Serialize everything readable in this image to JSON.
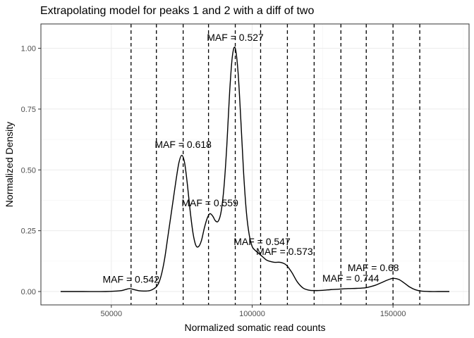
{
  "chart_data": {
    "type": "line",
    "title": "Extrapolating model for peaks 1 and 2 with a diff of two",
    "xlabel": "Normalized somatic read counts",
    "ylabel": "Normalized Density",
    "xlim": [
      25000,
      177000
    ],
    "ylim": [
      -0.055,
      1.1
    ],
    "x_ticks": [
      50000,
      100000,
      150000
    ],
    "x_tick_labels": [
      "50000",
      "100000",
      "150000"
    ],
    "y_ticks": [
      0,
      0.25,
      0.5,
      0.75,
      1.0
    ],
    "y_tick_labels": [
      "0.00",
      "0.25",
      "0.50",
      "0.75",
      "1.00"
    ],
    "grid": true,
    "series": [
      {
        "x": [
          32000,
          40000,
          48000,
          53000,
          55000,
          56500,
          58000,
          60000,
          62000,
          64000,
          66000,
          67000,
          68000,
          69000,
          70000,
          71000,
          72000,
          73000,
          74000,
          75000,
          76000,
          77000,
          78000,
          79000,
          80000,
          81000,
          82000,
          83000,
          84000,
          85000,
          86000,
          87000,
          88000,
          89000,
          90000,
          91000,
          92000,
          93000,
          94000,
          95000,
          96000,
          97000,
          98000,
          99000,
          100000,
          101000,
          102000,
          103000,
          104000,
          105000,
          106000,
          108000,
          110000,
          112000,
          114000,
          116000,
          118000,
          120000,
          122000,
          125000,
          128000,
          131000,
          134000,
          137000,
          140000,
          142000,
          144000,
          146000,
          148000,
          150000,
          152000,
          154000,
          156000,
          158000,
          160000,
          163000,
          166000,
          170000
        ],
        "y": [
          0.0,
          0.0,
          0.0,
          0.003,
          0.008,
          0.012,
          0.008,
          0.003,
          0.002,
          0.005,
          0.02,
          0.04,
          0.08,
          0.14,
          0.22,
          0.3,
          0.38,
          0.46,
          0.53,
          0.56,
          0.53,
          0.44,
          0.33,
          0.24,
          0.19,
          0.185,
          0.21,
          0.26,
          0.3,
          0.32,
          0.31,
          0.29,
          0.29,
          0.33,
          0.43,
          0.6,
          0.82,
          0.97,
          1.0,
          0.9,
          0.7,
          0.48,
          0.32,
          0.23,
          0.185,
          0.17,
          0.16,
          0.15,
          0.14,
          0.13,
          0.125,
          0.12,
          0.12,
          0.11,
          0.08,
          0.04,
          0.015,
          0.006,
          0.004,
          0.005,
          0.008,
          0.01,
          0.012,
          0.013,
          0.015,
          0.02,
          0.027,
          0.037,
          0.047,
          0.054,
          0.05,
          0.035,
          0.018,
          0.007,
          0.002,
          0.0,
          0.0,
          0.0
        ]
      }
    ],
    "vlines": [
      57000,
      66000,
      75500,
      84500,
      94000,
      103000,
      112500,
      122000,
      131500,
      140500,
      150000,
      159500
    ],
    "annotations": [
      {
        "text": "MAF = 0.527",
        "x": 94000,
        "y": 1.045
      },
      {
        "text": "MAF = 0.618",
        "x": 75500,
        "y": 0.605
      },
      {
        "text": "MAF = 0.559",
        "x": 85000,
        "y": 0.365
      },
      {
        "text": "MAF = 0.547",
        "x": 103500,
        "y": 0.205
      },
      {
        "text": "MAF = 0.573",
        "x": 111500,
        "y": 0.165
      },
      {
        "text": "MAF = 0.542",
        "x": 57000,
        "y": 0.05
      },
      {
        "text": "MAF = 0.68",
        "x": 143000,
        "y": 0.098
      },
      {
        "text": "MAF = 0.744",
        "x": 135000,
        "y": 0.055
      }
    ]
  }
}
